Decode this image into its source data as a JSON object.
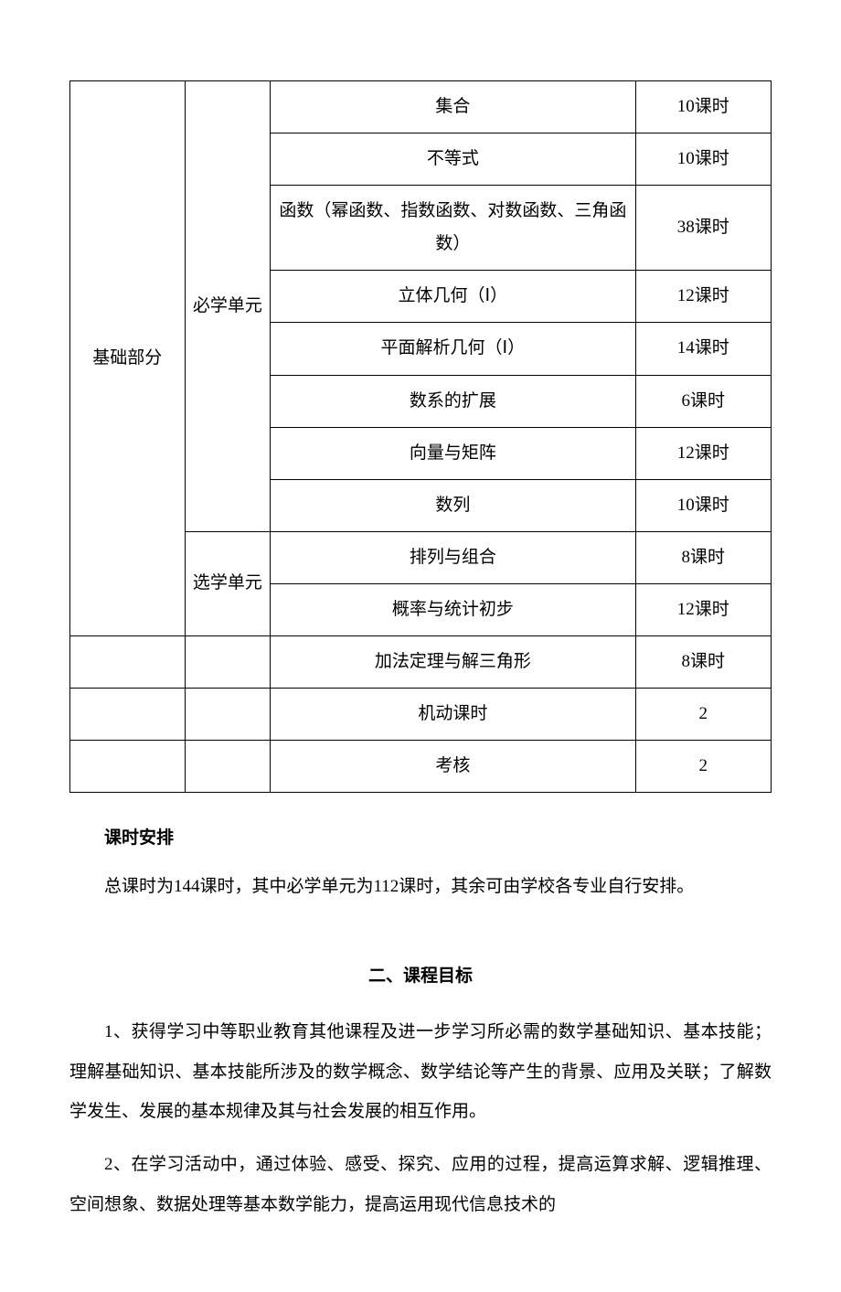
{
  "table": {
    "sectionLabel": "基础部分",
    "requiredUnitLabel": "必学单元",
    "electiveUnitLabel": "选学单元",
    "requiredRows": [
      {
        "topic": "集合",
        "hours": "10课时"
      },
      {
        "topic": "不等式",
        "hours": "10课时"
      },
      {
        "topic": "函数（幂函数、指数函数、对数函数、三角函数）",
        "hours": "38课时"
      },
      {
        "topic": "立体几何（Ⅰ）",
        "hours": "12课时"
      },
      {
        "topic": "平面解析几何（Ⅰ）",
        "hours": "14课时"
      },
      {
        "topic": "数系的扩展",
        "hours": "6课时"
      },
      {
        "topic": "向量与矩阵",
        "hours": "12课时"
      },
      {
        "topic": "数列",
        "hours": "10课时"
      }
    ],
    "electiveRows": [
      {
        "topic": "排列与组合",
        "hours": "8课时"
      },
      {
        "topic": "概率与统计初步",
        "hours": "12课时"
      }
    ],
    "footerRows": [
      {
        "topic": "加法定理与解三角形",
        "hours": "8课时"
      },
      {
        "topic": "机动课时",
        "hours": "2"
      },
      {
        "topic": "考核",
        "hours": "2"
      }
    ]
  },
  "hoursHeading": "课时安排",
  "hoursParagraph": "总课时为144课时，其中必学单元为112课时，其余可由学校各专业自行安排。",
  "section2Title": "二、课程目标",
  "para1": "1、获得学习中等职业教育其他课程及进一步学习所必需的数学基础知识、基本技能；理解基础知识、基本技能所涉及的数学概念、数学结论等产生的背景、应用及关联；了解数学发生、发展的基本规律及其与社会发展的相互作用。",
  "para2": "2、在学习活动中，通过体验、感受、探究、应用的过程，提高运算求解、逻辑推理、空间想象、数据处理等基本数学能力，提高运用现代信息技术的"
}
